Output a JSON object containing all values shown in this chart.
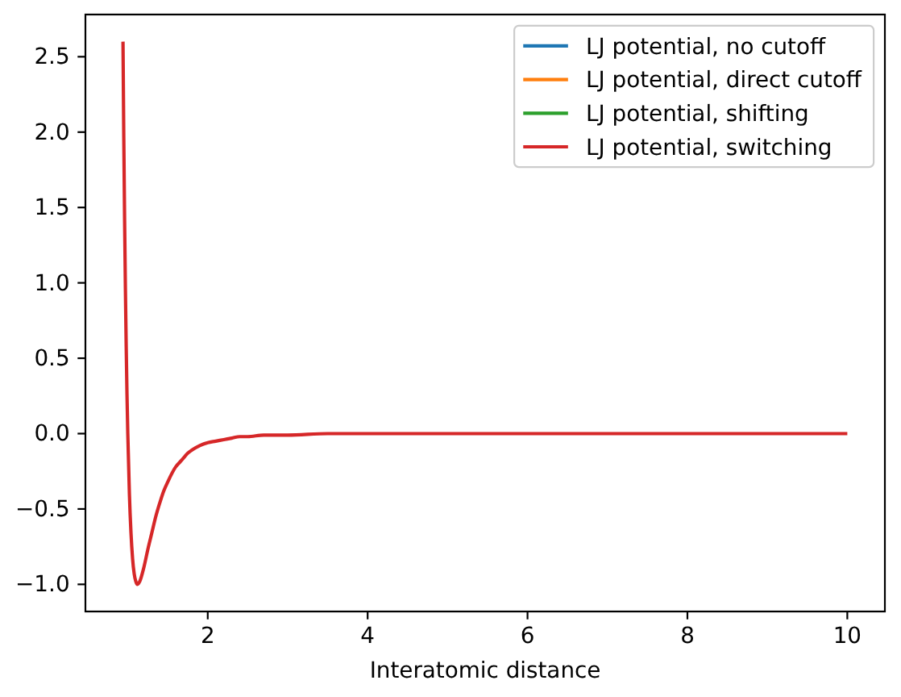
{
  "chart_data": {
    "type": "line",
    "xlabel": "Interatomic distance",
    "x": [
      0.94,
      0.95,
      0.96,
      0.97,
      0.98,
      0.99,
      1.0,
      1.02,
      1.04,
      1.06,
      1.08,
      1.1,
      1.12,
      1.15,
      1.2,
      1.25,
      1.3,
      1.35,
      1.4,
      1.45,
      1.5,
      1.6,
      1.65,
      1.7,
      1.75,
      1.8,
      1.9,
      2.0,
      2.1,
      2.2,
      2.3,
      2.4,
      2.5,
      2.7,
      3.0,
      3.5,
      4,
      5,
      6,
      7,
      8,
      9,
      10
    ],
    "series": [
      {
        "name": "LJ potential, no cutoff",
        "color": "#1f77b4",
        "values": [
          null,
          null,
          null,
          null,
          null,
          null,
          null,
          null,
          null,
          null,
          null,
          null,
          null,
          null,
          null,
          null,
          null,
          null,
          null,
          null,
          null,
          null,
          null,
          null,
          null,
          null,
          null,
          null,
          null,
          null,
          null,
          null,
          null,
          null,
          null,
          null,
          null,
          null,
          null,
          null,
          null,
          null,
          null
        ]
      },
      {
        "name": "LJ potential, direct cutoff",
        "color": "#ff7f0e",
        "values": [
          null,
          null,
          null,
          null,
          null,
          null,
          null,
          null,
          null,
          null,
          null,
          null,
          null,
          null,
          null,
          null,
          null,
          null,
          null,
          null,
          null,
          null,
          null,
          null,
          null,
          null,
          null,
          null,
          null,
          null,
          null,
          null,
          null,
          null,
          null,
          null,
          null,
          null,
          null,
          null,
          null,
          null,
          null
        ]
      },
      {
        "name": "LJ potential, shifting",
        "color": "#2ca02c",
        "values": [
          null,
          null,
          null,
          null,
          null,
          null,
          null,
          null,
          null,
          null,
          null,
          null,
          null,
          null,
          null,
          null,
          null,
          null,
          null,
          null,
          null,
          null,
          null,
          null,
          null,
          null,
          null,
          null,
          null,
          null,
          null,
          null,
          null,
          null,
          null,
          null,
          null,
          null,
          null,
          null,
          null,
          null,
          null
        ]
      },
      {
        "name": "LJ potential, switching",
        "color": "#d62728",
        "values": [
          2.6,
          1.96,
          1.42,
          0.96,
          0.58,
          0.26,
          0,
          -0.4,
          -0.66,
          -0.83,
          -0.93,
          -0.98,
          -1.0,
          -0.98,
          -0.89,
          -0.77,
          -0.66,
          -0.55,
          -0.46,
          -0.38,
          -0.32,
          -0.22,
          -0.19,
          -0.16,
          -0.13,
          -0.11,
          -0.08,
          -0.06,
          -0.05,
          -0.04,
          -0.03,
          -0.02,
          -0.02,
          -0.01,
          -0.01,
          0,
          0,
          0,
          0,
          0,
          0,
          0,
          0
        ]
      }
    ],
    "xlim": [
      0.47,
      10.47
    ],
    "ylim": [
      -1.18,
      2.78
    ],
    "xticks": [
      2,
      4,
      6,
      8,
      10
    ],
    "yticks": [
      {
        "value": -1,
        "label": "−1.0"
      },
      {
        "value": -0.5,
        "label": "−0.5"
      },
      {
        "value": 0,
        "label": "0.0"
      },
      {
        "value": 0.5,
        "label": "0.5"
      },
      {
        "value": 1,
        "label": "1.0"
      },
      {
        "value": 1.5,
        "label": "1.5"
      },
      {
        "value": 2,
        "label": "2.0"
      },
      2.5
    ],
    "grid": false,
    "legend": "top right"
  }
}
